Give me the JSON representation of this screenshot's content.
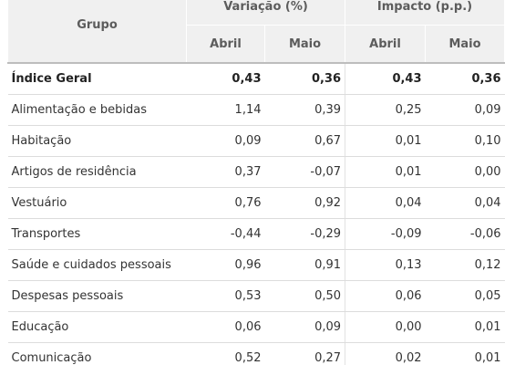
{
  "header": {
    "group": "Grupo",
    "variation": "Variação (%)",
    "impact": "Impacto (p.p.)",
    "april": "Abril",
    "may": "Maio"
  },
  "rows": [
    {
      "label": "Índice Geral",
      "var_april": "0,43",
      "var_may": "0,36",
      "imp_april": "0,43",
      "imp_may": "0,36"
    },
    {
      "label": "Alimentação e bebidas",
      "var_april": "1,14",
      "var_may": "0,39",
      "imp_april": "0,25",
      "imp_may": "0,09"
    },
    {
      "label": "Habitação",
      "var_april": "0,09",
      "var_may": "0,67",
      "imp_april": "0,01",
      "imp_may": "0,10"
    },
    {
      "label": "Artigos de residência",
      "var_april": "0,37",
      "var_may": "-0,07",
      "imp_april": "0,01",
      "imp_may": "0,00"
    },
    {
      "label": "Vestuário",
      "var_april": "0,76",
      "var_may": "0,92",
      "imp_april": "0,04",
      "imp_may": "0,04"
    },
    {
      "label": "Transportes",
      "var_april": "-0,44",
      "var_may": "-0,29",
      "imp_april": "-0,09",
      "imp_may": "-0,06"
    },
    {
      "label": "Saúde e cuidados pessoais",
      "var_april": "0,96",
      "var_may": "0,91",
      "imp_april": "0,13",
      "imp_may": "0,12"
    },
    {
      "label": "Despesas pessoais",
      "var_april": "0,53",
      "var_may": "0,50",
      "imp_april": "0,06",
      "imp_may": "0,05"
    },
    {
      "label": "Educação",
      "var_april": "0,06",
      "var_may": "0,09",
      "imp_april": "0,00",
      "imp_may": "0,01"
    },
    {
      "label": "Comunicação",
      "var_april": "0,52",
      "var_may": "0,27",
      "imp_april": "0,02",
      "imp_may": "0,01"
    }
  ]
}
